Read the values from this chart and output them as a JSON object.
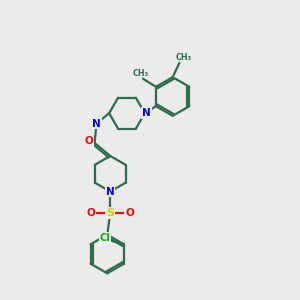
{
  "bg_color": "#ebebeb",
  "bond_color": "#2d6e4e",
  "N_color": "#0000ff",
  "O_color": "#ff0000",
  "S_color": "#cccc00",
  "Cl_color": "#00bb00",
  "line_width": 1.6,
  "dbo": 0.055,
  "xlim": [
    -0.5,
    5.0
  ],
  "ylim": [
    -4.2,
    3.8
  ]
}
